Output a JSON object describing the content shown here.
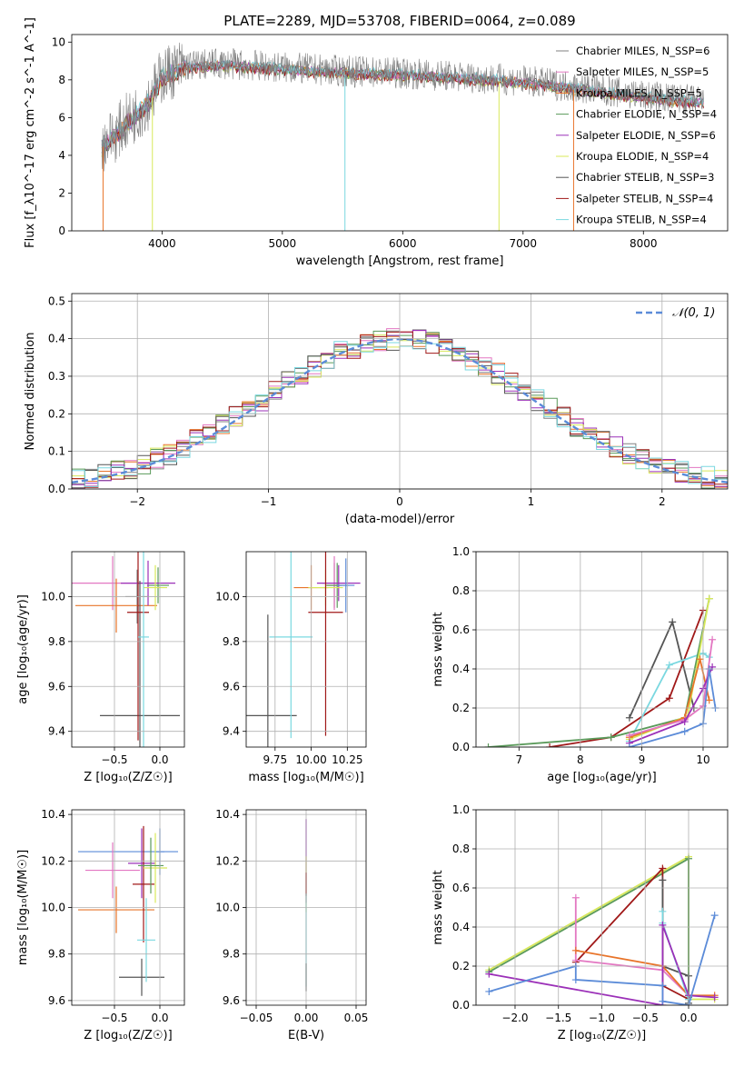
{
  "title": "PLATE=2289, MJD=53708, FIBERID=0064, z=0.089",
  "colors": {
    "chabrier_miles": "#808080",
    "salpeter_miles": "#e377c2",
    "kroupa_miles": "#e8742a",
    "chabrier_elodie": "#5a9a5a",
    "salpeter_elodie": "#9b30b8",
    "kroupa_elodie": "#d8e85a",
    "chabrier_stelib": "#555555",
    "salpeter_stelib": "#a01818",
    "kroupa_stelib": "#7ad8e0",
    "normal_curve": "#5b8bd8"
  },
  "chart_data": [
    {
      "id": "spectrum",
      "type": "line",
      "xlabel": "wavelength [Angstrom, rest frame]",
      "ylabel": "Flux [f_λ10^-17 erg cm^-2 s^-1 A^-1]",
      "xlim": [
        3250,
        8700
      ],
      "ylim": [
        0,
        10.4
      ],
      "xticks": [
        "4000",
        "5000",
        "6000",
        "7000",
        "8000"
      ],
      "yticks": [
        "0",
        "2",
        "4",
        "6",
        "8",
        "10"
      ],
      "legend_position": "right",
      "series": [
        {
          "name": "Chabrier MILES, N_SSP=6",
          "color_key": "chabrier_miles"
        },
        {
          "name": "Salpeter MILES, N_SSP=5",
          "color_key": "salpeter_miles"
        },
        {
          "name": "Kroupa MILES, N_SSP=5",
          "color_key": "kroupa_miles"
        },
        {
          "name": "Chabrier ELODIE, N_SSP=4",
          "color_key": "chabrier_elodie"
        },
        {
          "name": "Salpeter ELODIE, N_SSP=6",
          "color_key": "salpeter_elodie"
        },
        {
          "name": "Kroupa ELODIE, N_SSP=4",
          "color_key": "kroupa_elodie"
        },
        {
          "name": "Chabrier STELIB, N_SSP=3",
          "color_key": "chabrier_stelib"
        },
        {
          "name": "Salpeter STELIB, N_SSP=4",
          "color_key": "salpeter_stelib"
        },
        {
          "name": "Kroupa STELIB, N_SSP=4",
          "color_key": "kroupa_stelib"
        }
      ],
      "continuum": [
        [
          3500,
          4.4
        ],
        [
          3600,
          4.9
        ],
        [
          3700,
          5.6
        ],
        [
          3800,
          6.1
        ],
        [
          3900,
          6.8
        ],
        [
          4000,
          8.1
        ],
        [
          4200,
          8.6
        ],
        [
          4500,
          8.7
        ],
        [
          5000,
          8.5
        ],
        [
          5500,
          8.3
        ],
        [
          6000,
          8.2
        ],
        [
          6500,
          8.0
        ],
        [
          7000,
          7.8
        ],
        [
          7500,
          7.4
        ],
        [
          8000,
          7.0
        ],
        [
          8500,
          6.7
        ]
      ]
    },
    {
      "id": "residuals",
      "type": "histogram",
      "xlabel": "(data-model)/error",
      "ylabel": "Normed distribution",
      "xlim": [
        -2.5,
        2.5
      ],
      "ylim": [
        0,
        0.52
      ],
      "xticks": [
        "−2",
        "−1",
        "0",
        "1",
        "2"
      ],
      "yticks": [
        "0.0",
        "0.1",
        "0.2",
        "0.3",
        "0.4",
        "0.5"
      ],
      "legend_label": "𝒩(0, 1)",
      "legend_position": "top-right",
      "bin_width": 0.1
    },
    {
      "id": "age_vs_Z",
      "type": "errorbar",
      "xlabel": "Z [log₁₀(Z/Z☉)]",
      "ylabel": "age  [log₁₀(age/yr)]",
      "xlim": [
        -0.97,
        0.27
      ],
      "ylim": [
        9.33,
        10.2
      ],
      "xticks": [
        "−0.5",
        "0.0"
      ],
      "yticks": [
        "9.4",
        "9.6",
        "9.8",
        "10.0"
      ],
      "points": [
        {
          "c": "chabrier_miles",
          "x": -0.25,
          "xe": 0.13,
          "y": 10.0,
          "ye": 0.12
        },
        {
          "c": "salpeter_miles",
          "x": -0.52,
          "xe": 0.45,
          "y": 10.06,
          "ye": 0.12
        },
        {
          "c": "kroupa_miles",
          "x": -0.48,
          "xe": 0.45,
          "y": 9.96,
          "ye": 0.12
        },
        {
          "c": "chabrier_elodie",
          "x": -0.02,
          "xe": 0.12,
          "y": 10.05,
          "ye": 0.08
        },
        {
          "c": "salpeter_elodie",
          "x": -0.13,
          "xe": 0.3,
          "y": 10.06,
          "ye": 0.1
        },
        {
          "c": "kroupa_elodie",
          "x": -0.05,
          "xe": 0.13,
          "y": 10.04,
          "ye": 0.1
        },
        {
          "c": "chabrier_stelib",
          "x": -0.22,
          "xe": 0.44,
          "y": 9.47,
          "ye": 0.6
        },
        {
          "c": "salpeter_stelib",
          "x": -0.24,
          "xe": 0.12,
          "y": 9.93,
          "ye": 0.57
        },
        {
          "c": "kroupa_stelib",
          "x": -0.18,
          "xe": 0.06,
          "y": 9.82,
          "ye": 0.5
        }
      ]
    },
    {
      "id": "age_vs_mass",
      "type": "errorbar",
      "xlabel": "mass [log₁₀(M/M☉)]",
      "ylabel": "",
      "xlim": [
        9.55,
        10.38
      ],
      "ylim": [
        9.33,
        10.2
      ],
      "xticks": [
        "9.75",
        "10.00",
        "10.25"
      ],
      "yticks": [
        "9.4",
        "9.6",
        "9.8",
        "10.0"
      ],
      "points": [
        {
          "c": "chabrier_miles",
          "x": 10.16,
          "xe": 0.05,
          "y": 10.05,
          "ye": 0.1
        },
        {
          "c": "salpeter_miles",
          "x": 10.16,
          "xe": 0.08,
          "y": 10.06,
          "ye": 0.12
        },
        {
          "c": "kroupa_miles",
          "x": 10.0,
          "xe": 0.12,
          "y": 10.04,
          "ye": 0.1
        },
        {
          "c": "chabrier_elodie",
          "x": 10.18,
          "xe": 0.08,
          "y": 10.05,
          "ye": 0.1
        },
        {
          "c": "salpeter_elodie",
          "x": 10.19,
          "xe": 0.15,
          "y": 10.06,
          "ye": 0.08
        },
        {
          "c": "kroupa_elodie",
          "x": 10.1,
          "xe": 0.12,
          "y": 10.04,
          "ye": 0.08
        },
        {
          "c": "chabrier_stelib",
          "x": 9.7,
          "xe": 0.2,
          "y": 9.47,
          "ye": 0.45
        },
        {
          "c": "salpeter_stelib",
          "x": 10.1,
          "xe": 0.12,
          "y": 9.93,
          "ye": 0.55
        },
        {
          "c": "kroupa_stelib",
          "x": 9.86,
          "xe": 0.15,
          "y": 9.82,
          "ye": 0.45
        },
        {
          "c": "normal_curve",
          "x": 10.24,
          "xe": 0.06,
          "y": 10.05,
          "ye": 0.12
        }
      ]
    },
    {
      "id": "weight_vs_age",
      "type": "line",
      "xlabel": "age  [log₁₀(age/yr)]",
      "ylabel": "mass weight",
      "xlim": [
        6.3,
        10.4
      ],
      "ylim": [
        0,
        1.0
      ],
      "xticks": [
        "7",
        "8",
        "9",
        "10"
      ],
      "yticks": [
        "0.0",
        "0.2",
        "0.4",
        "0.6",
        "0.8",
        "1.0"
      ],
      "series": [
        {
          "c": "chabrier_stelib",
          "pts": [
            [
              8.8,
              0.15
            ],
            [
              9.5,
              0.64
            ],
            [
              9.85,
              0.2
            ]
          ]
        },
        {
          "c": "salpeter_stelib",
          "pts": [
            [
              7.5,
              0.0
            ],
            [
              8.5,
              0.05
            ],
            [
              9.45,
              0.25
            ],
            [
              10.0,
              0.7
            ]
          ]
        },
        {
          "c": "kroupa_stelib",
          "pts": [
            [
              8.8,
              0.03
            ],
            [
              9.45,
              0.42
            ],
            [
              10.0,
              0.48
            ],
            [
              10.1,
              0.46
            ]
          ]
        },
        {
          "c": "chabrier_elodie",
          "pts": [
            [
              6.5,
              0.0
            ],
            [
              8.5,
              0.05
            ],
            [
              9.7,
              0.15
            ],
            [
              10.1,
              0.76
            ]
          ]
        },
        {
          "c": "kroupa_elodie",
          "pts": [
            [
              8.8,
              0.04
            ],
            [
              9.75,
              0.16
            ],
            [
              10.1,
              0.76
            ]
          ]
        },
        {
          "c": "kroupa_miles",
          "pts": [
            [
              8.8,
              0.05
            ],
            [
              9.7,
              0.15
            ],
            [
              9.95,
              0.45
            ],
            [
              10.1,
              0.24
            ]
          ]
        },
        {
          "c": "salpeter_miles",
          "pts": [
            [
              8.8,
              0.06
            ],
            [
              9.7,
              0.14
            ],
            [
              10.0,
              0.21
            ],
            [
              10.15,
              0.55
            ]
          ]
        },
        {
          "c": "salpeter_elodie",
          "pts": [
            [
              8.8,
              0.02
            ],
            [
              9.7,
              0.13
            ],
            [
              10.0,
              0.3
            ],
            [
              10.15,
              0.41
            ]
          ]
        },
        {
          "c": "normal_curve",
          "pts": [
            [
              8.8,
              0.0
            ],
            [
              9.7,
              0.08
            ],
            [
              10.0,
              0.12
            ],
            [
              10.1,
              0.4
            ],
            [
              10.2,
              0.2
            ]
          ]
        }
      ]
    },
    {
      "id": "mass_vs_Z",
      "type": "errorbar",
      "xlabel": "Z [log₁₀(Z/Z☉)]",
      "ylabel": "mass [log₁₀(M/M☉)]",
      "xlim": [
        -0.97,
        0.27
      ],
      "ylim": [
        9.58,
        10.42
      ],
      "xticks": [
        "−0.5",
        "0.0"
      ],
      "yticks": [
        "9.6",
        "9.8",
        "10.0",
        "10.2",
        "10.4"
      ],
      "points": [
        {
          "c": "normal_curve",
          "x": -0.35,
          "xe": 0.55,
          "y": 10.24,
          "ye": 0.0
        },
        {
          "c": "normal_curve",
          "x": 0.0,
          "xe": 0.05,
          "y": 10.24,
          "ye": 0.1
        },
        {
          "c": "salpeter_miles",
          "x": -0.52,
          "xe": 0.3,
          "y": 10.16,
          "ye": 0.12
        },
        {
          "c": "kroupa_miles",
          "x": -0.48,
          "xe": 0.42,
          "y": 9.99,
          "ye": 0.1
        },
        {
          "c": "salpeter_elodie",
          "x": -0.2,
          "xe": 0.15,
          "y": 10.19,
          "ye": 0.15
        },
        {
          "c": "chabrier_stelib",
          "x": -0.2,
          "xe": 0.25,
          "y": 9.7,
          "ye": 0.08
        },
        {
          "c": "salpeter_stelib",
          "x": -0.18,
          "xe": 0.12,
          "y": 10.1,
          "ye": 0.25
        },
        {
          "c": "kroupa_stelib",
          "x": -0.15,
          "xe": 0.1,
          "y": 9.86,
          "ye": 0.18
        },
        {
          "c": "kroupa_elodie",
          "x": -0.05,
          "xe": 0.13,
          "y": 10.17,
          "ye": 0.15
        },
        {
          "c": "chabrier_elodie",
          "x": -0.1,
          "xe": 0.14,
          "y": 10.18,
          "ye": 0.12
        }
      ]
    },
    {
      "id": "mass_vs_ebv",
      "type": "errorbar",
      "xlabel": "E(B-V)",
      "ylabel": "",
      "xlim": [
        -0.06,
        0.06
      ],
      "ylim": [
        9.58,
        10.42
      ],
      "xticks": [
        "−0.05",
        "0.00",
        "0.05"
      ],
      "yticks": [
        "9.6",
        "9.8",
        "10.0",
        "10.2",
        "10.4"
      ],
      "points": [
        {
          "c": "salpeter_elodie",
          "x": 0.0,
          "xe": 0.0,
          "y": 10.2,
          "ye": 0.18
        },
        {
          "c": "kroupa_elodie",
          "x": 0.0,
          "xe": 0.0,
          "y": 10.1,
          "ye": 0.12
        },
        {
          "c": "salpeter_stelib",
          "x": 0.0,
          "xe": 0.0,
          "y": 10.1,
          "ye": 0.05
        },
        {
          "c": "kroupa_stelib",
          "x": 0.0,
          "xe": 0.0,
          "y": 9.86,
          "ye": 0.2
        },
        {
          "c": "chabrier_stelib",
          "x": 0.0,
          "xe": 0.0,
          "y": 9.7,
          "ye": 0.06
        }
      ]
    },
    {
      "id": "weight_vs_Z",
      "type": "line",
      "xlabel": "Z [log₁₀(Z/Z☉)]",
      "ylabel": "mass weight",
      "xlim": [
        -2.45,
        0.45
      ],
      "ylim": [
        0,
        1.0
      ],
      "xticks": [
        "−2.0",
        "−1.5",
        "−1.0",
        "−0.5",
        "0.0"
      ],
      "yticks": [
        "0.0",
        "0.2",
        "0.4",
        "0.6",
        "0.8",
        "1.0"
      ],
      "series": [
        {
          "c": "kroupa_elodie",
          "pts": [
            [
              -2.3,
              0.18
            ],
            [
              0.0,
              0.76
            ],
            [
              0.0,
              0.03
            ],
            [
              0.3,
              0.03
            ]
          ]
        },
        {
          "c": "chabrier_elodie",
          "pts": [
            [
              -2.3,
              0.17
            ],
            [
              0.0,
              0.75
            ],
            [
              0.0,
              0.04
            ]
          ]
        },
        {
          "c": "salpeter_stelib",
          "pts": [
            [
              -1.3,
              0.22
            ],
            [
              -0.3,
              0.7
            ],
            [
              -0.3,
              0.1
            ],
            [
              0.0,
              0.03
            ]
          ]
        },
        {
          "c": "chabrier_stelib",
          "pts": [
            [
              -0.3,
              0.64
            ],
            [
              -0.3,
              0.2
            ],
            [
              0.0,
              0.15
            ],
            [
              0.0,
              0.01
            ]
          ]
        },
        {
          "c": "salpeter_miles",
          "pts": [
            [
              -1.3,
              0.55
            ],
            [
              -1.3,
              0.23
            ],
            [
              -0.3,
              0.18
            ],
            [
              0.0,
              0.05
            ]
          ]
        },
        {
          "c": "kroupa_miles",
          "pts": [
            [
              -1.3,
              0.28
            ],
            [
              -0.3,
              0.2
            ],
            [
              0.0,
              0.05
            ],
            [
              0.3,
              0.05
            ]
          ]
        },
        {
          "c": "kroupa_stelib",
          "pts": [
            [
              -0.3,
              0.48
            ],
            [
              -0.3,
              0.42
            ],
            [
              0.0,
              0.03
            ]
          ]
        },
        {
          "c": "salpeter_elodie",
          "pts": [
            [
              -2.3,
              0.16
            ],
            [
              -0.3,
              0.0
            ],
            [
              -0.3,
              0.41
            ],
            [
              0.0,
              0.05
            ],
            [
              0.3,
              0.04
            ]
          ]
        },
        {
          "c": "normal_curve",
          "pts": [
            [
              -2.3,
              0.07
            ],
            [
              -1.3,
              0.2
            ],
            [
              -1.3,
              0.13
            ],
            [
              -0.3,
              0.1
            ],
            [
              -0.3,
              0.02
            ],
            [
              0.0,
              0.0
            ],
            [
              0.3,
              0.46
            ]
          ]
        }
      ]
    }
  ]
}
